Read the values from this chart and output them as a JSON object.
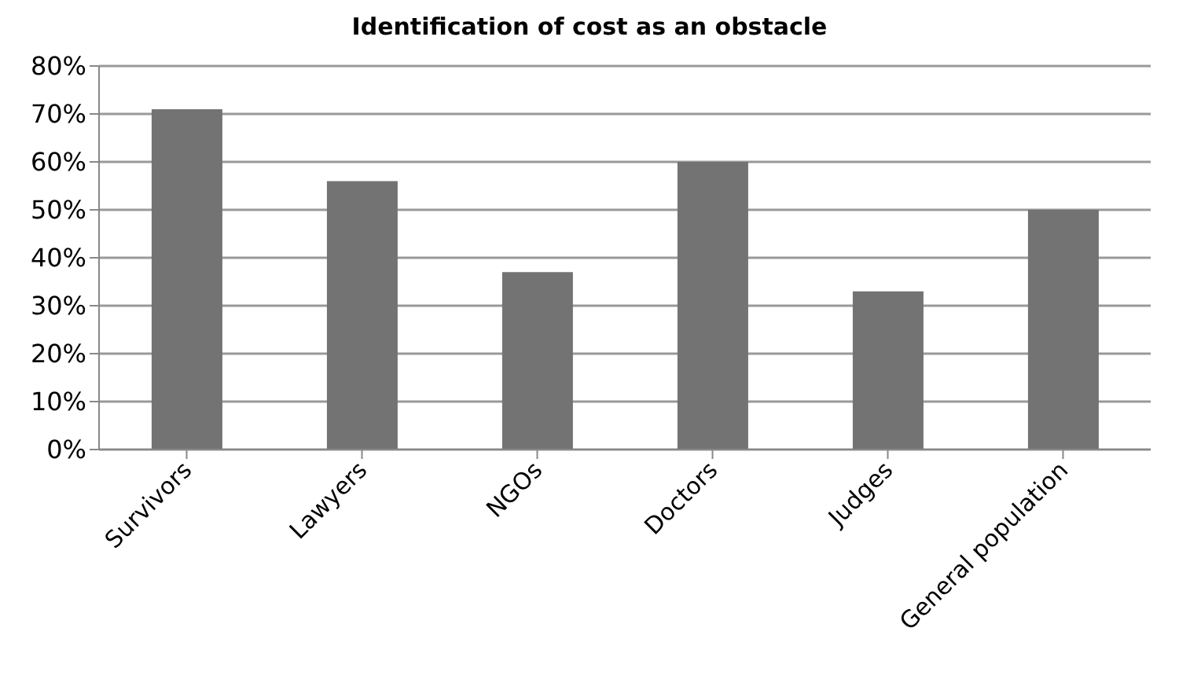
{
  "chart_data": {
    "type": "bar",
    "title": "Identification of cost as an obstacle",
    "categories": [
      "Survivors",
      "Lawyers",
      "NGOs",
      "Doctors",
      "Judges",
      "General population"
    ],
    "values": [
      71,
      56,
      37,
      60,
      33,
      50
    ],
    "color": "#737373",
    "ylim": [
      0,
      80
    ],
    "yticks": [
      {
        "value": 0,
        "label": "0%"
      },
      {
        "value": 10,
        "label": "10%"
      },
      {
        "value": 20,
        "label": "20%"
      },
      {
        "value": 30,
        "label": "30%"
      },
      {
        "value": 40,
        "label": "40%"
      },
      {
        "value": 50,
        "label": "50%"
      },
      {
        "value": 60,
        "label": "60%"
      },
      {
        "value": 70,
        "label": "70%"
      },
      {
        "value": 80,
        "label": "80%"
      }
    ],
    "grid": "y"
  }
}
